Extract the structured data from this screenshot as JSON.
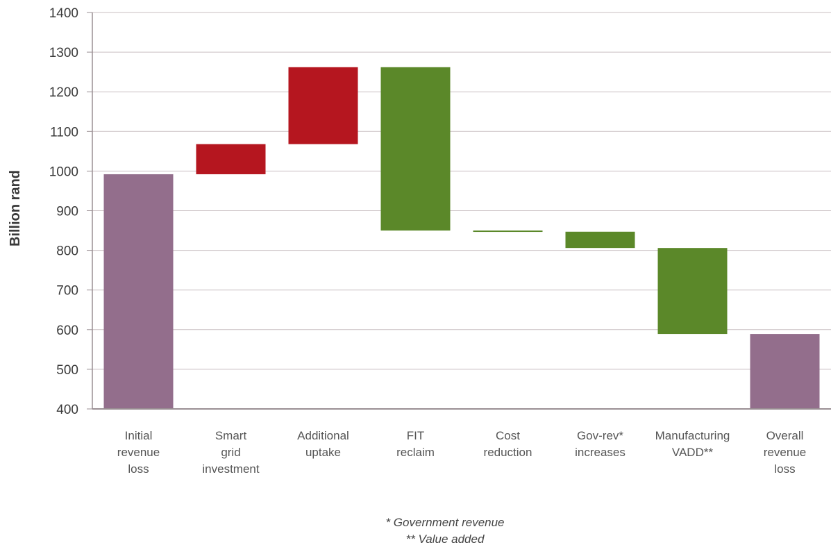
{
  "chart_data": {
    "type": "waterfall",
    "ylabel": "Billion rand",
    "ylim": [
      400,
      1400
    ],
    "yticks": [
      400,
      500,
      600,
      700,
      800,
      900,
      1000,
      1100,
      1200,
      1300,
      1400
    ],
    "grid": true,
    "colors": {
      "total": "#936e8c",
      "increase": "#b5161f",
      "decrease": "#5b8829",
      "grid": "#c9bfc2",
      "axis": "#9a8f93"
    },
    "bars": [
      {
        "label": [
          "Initial",
          "revenue",
          "loss"
        ],
        "start": 400,
        "end": 992,
        "kind": "total"
      },
      {
        "label": [
          "Smart",
          "grid",
          "investment"
        ],
        "start": 992,
        "end": 1068,
        "kind": "increase"
      },
      {
        "label": [
          "Additional",
          "uptake"
        ],
        "start": 1068,
        "end": 1262,
        "kind": "increase"
      },
      {
        "label": [
          "FIT",
          "reclaim"
        ],
        "start": 1262,
        "end": 850,
        "kind": "decrease"
      },
      {
        "label": [
          "Cost",
          "reduction"
        ],
        "start": 850,
        "end": 847,
        "kind": "decrease"
      },
      {
        "label": [
          "Gov-rev*",
          "increases"
        ],
        "start": 847,
        "end": 806,
        "kind": "decrease"
      },
      {
        "label": [
          "Manufacturing",
          "VADD**"
        ],
        "start": 806,
        "end": 589,
        "kind": "decrease"
      },
      {
        "label": [
          "Overall",
          "revenue",
          "loss"
        ],
        "start": 400,
        "end": 589,
        "kind": "total"
      }
    ],
    "footnotes": [
      "* Government revenue",
      "** Value added"
    ]
  }
}
